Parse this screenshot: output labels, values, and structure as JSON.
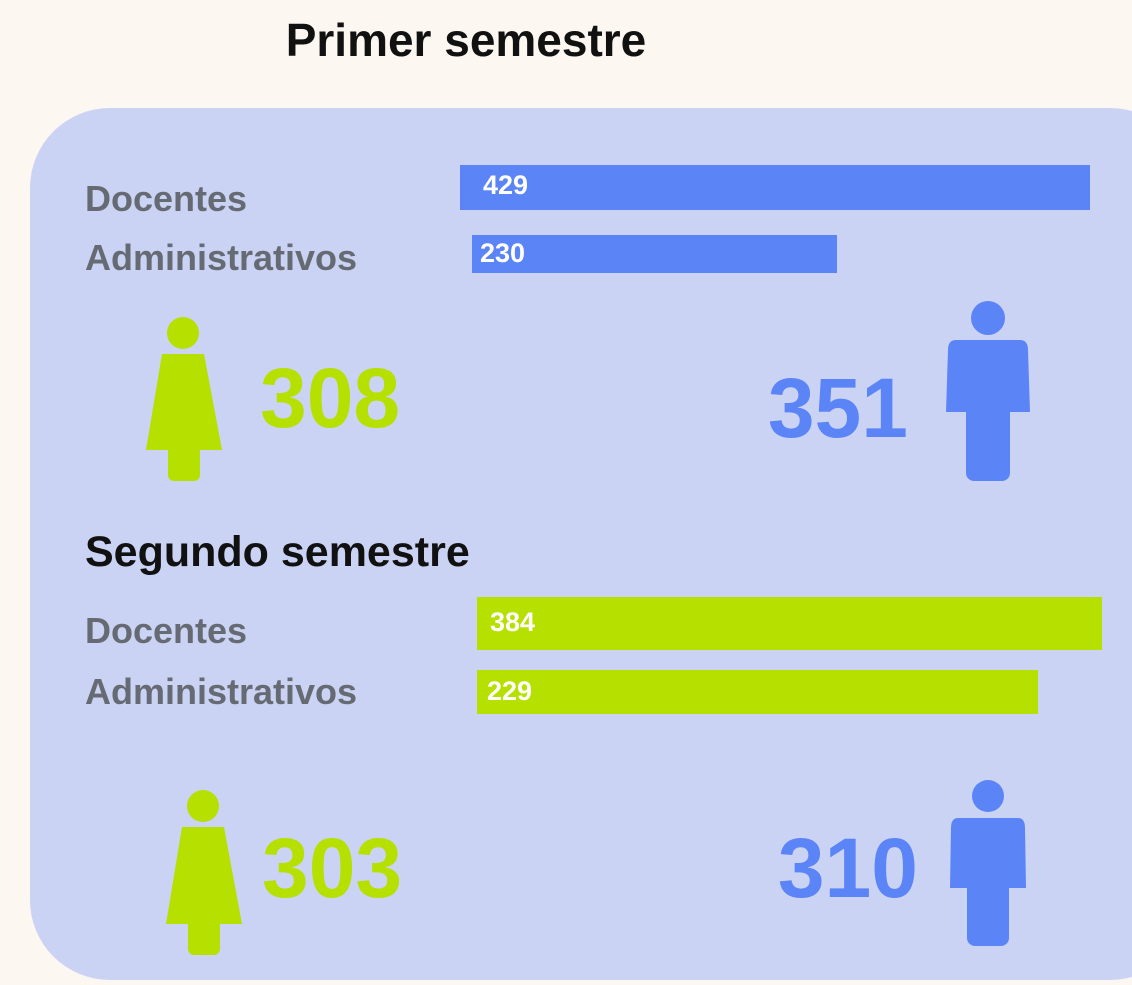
{
  "sections": [
    {
      "title": "Primer semestre",
      "rows": [
        {
          "label": "Docentes",
          "value": 429
        },
        {
          "label": "Administrativos",
          "value": 230
        }
      ],
      "women": 308,
      "men": 351
    },
    {
      "title": "Segundo semestre",
      "rows": [
        {
          "label": "Docentes",
          "value": 384
        },
        {
          "label": "Administrativos",
          "value": 229
        }
      ],
      "women": 303,
      "men": 310
    }
  ]
}
